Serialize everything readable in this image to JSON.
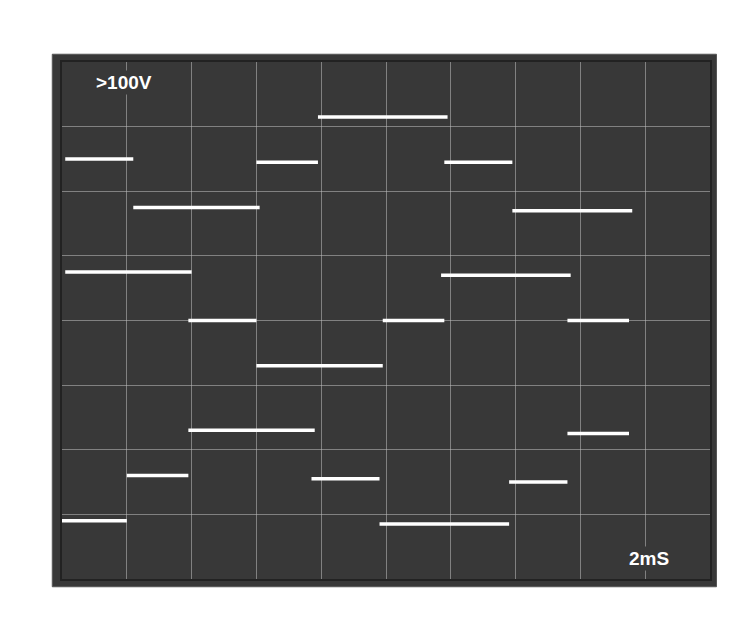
{
  "chart_data": {
    "type": "line",
    "annotations": [
      ">100V",
      "2mS"
    ],
    "x": [
      0.1,
      2.2,
      2.2,
      2.2,
      6.1,
      6.1,
      0.1,
      4.0,
      4.0,
      3.9,
      6.0,
      6.0,
      6.0,
      9.9,
      9.9,
      3.9,
      7.8,
      7.8,
      2.0,
      3.9,
      3.9,
      0.0,
      2.0,
      2.0,
      6.0,
      7.9,
      7.9,
      7.9,
      11.9,
      11.9,
      11.8,
      13.9,
      13.9,
      13.9,
      17.6,
      17.6,
      11.7,
      15.7,
      15.7,
      9.9,
      11.8,
      11.8,
      15.6,
      17.5,
      17.5,
      9.8,
      13.8,
      13.8,
      7.7,
      9.8,
      9.8,
      13.8,
      15.6,
      15.6,
      15.6,
      17.5,
      17.5
    ],
    "values": [
      250,
      250,
      null,
      175,
      175,
      null,
      75,
      75,
      null,
      0,
      0,
      null,
      -70,
      -70,
      null,
      -170,
      -170,
      null,
      -240,
      -240,
      null,
      -310,
      -310,
      null,
      245,
      245,
      null,
      315,
      315,
      null,
      245,
      245,
      null,
      170,
      170,
      null,
      70,
      70,
      null,
      0,
      0,
      null,
      0,
      0,
      null,
      -315,
      -315,
      null,
      -245,
      -245,
      null,
      -250,
      -250,
      null,
      -175,
      -175,
      null
    ],
    "color": "#ffffff",
    "xlim": [
      0,
      20
    ],
    "xticks": [
      0,
      2,
      4,
      6,
      8,
      10,
      12,
      14,
      16,
      18,
      20
    ],
    "ylim": [
      -400,
      400
    ],
    "yticks": [
      -400,
      -300,
      -200,
      -100,
      0,
      100,
      200,
      300,
      400
    ],
    "grid": true,
    "tick_labels": false
  }
}
